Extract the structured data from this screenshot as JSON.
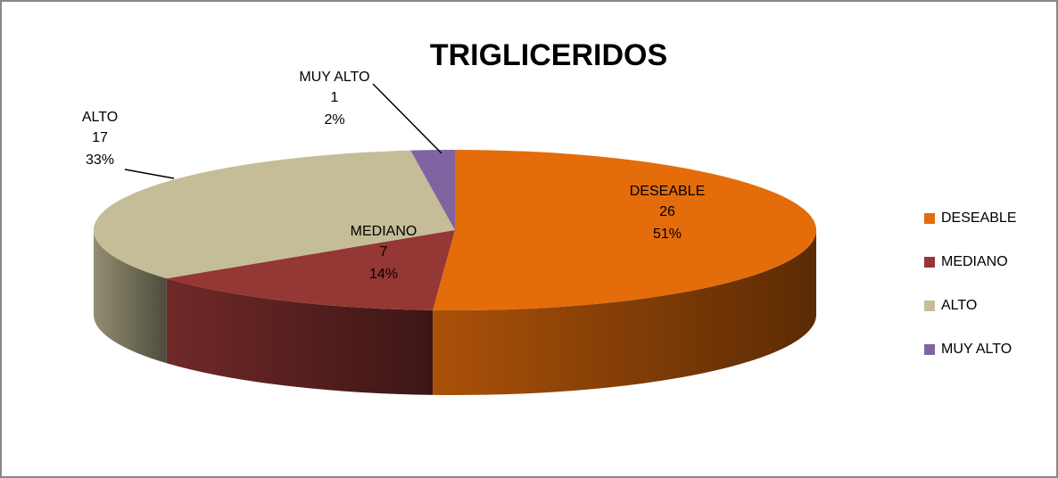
{
  "chart_data": {
    "type": "pie3d",
    "title": "TRIGLICERIDOS",
    "categories": [
      "DESEABLE",
      "MEDIANO",
      "ALTO",
      "MUY ALTO"
    ],
    "values": [
      26,
      7,
      17,
      1
    ],
    "percent_labels": [
      "51%",
      "14%",
      "33%",
      "2%"
    ],
    "colors": [
      "#E46C0A",
      "#953735",
      "#C4BD97",
      "#8064A2"
    ],
    "legend": "right"
  }
}
